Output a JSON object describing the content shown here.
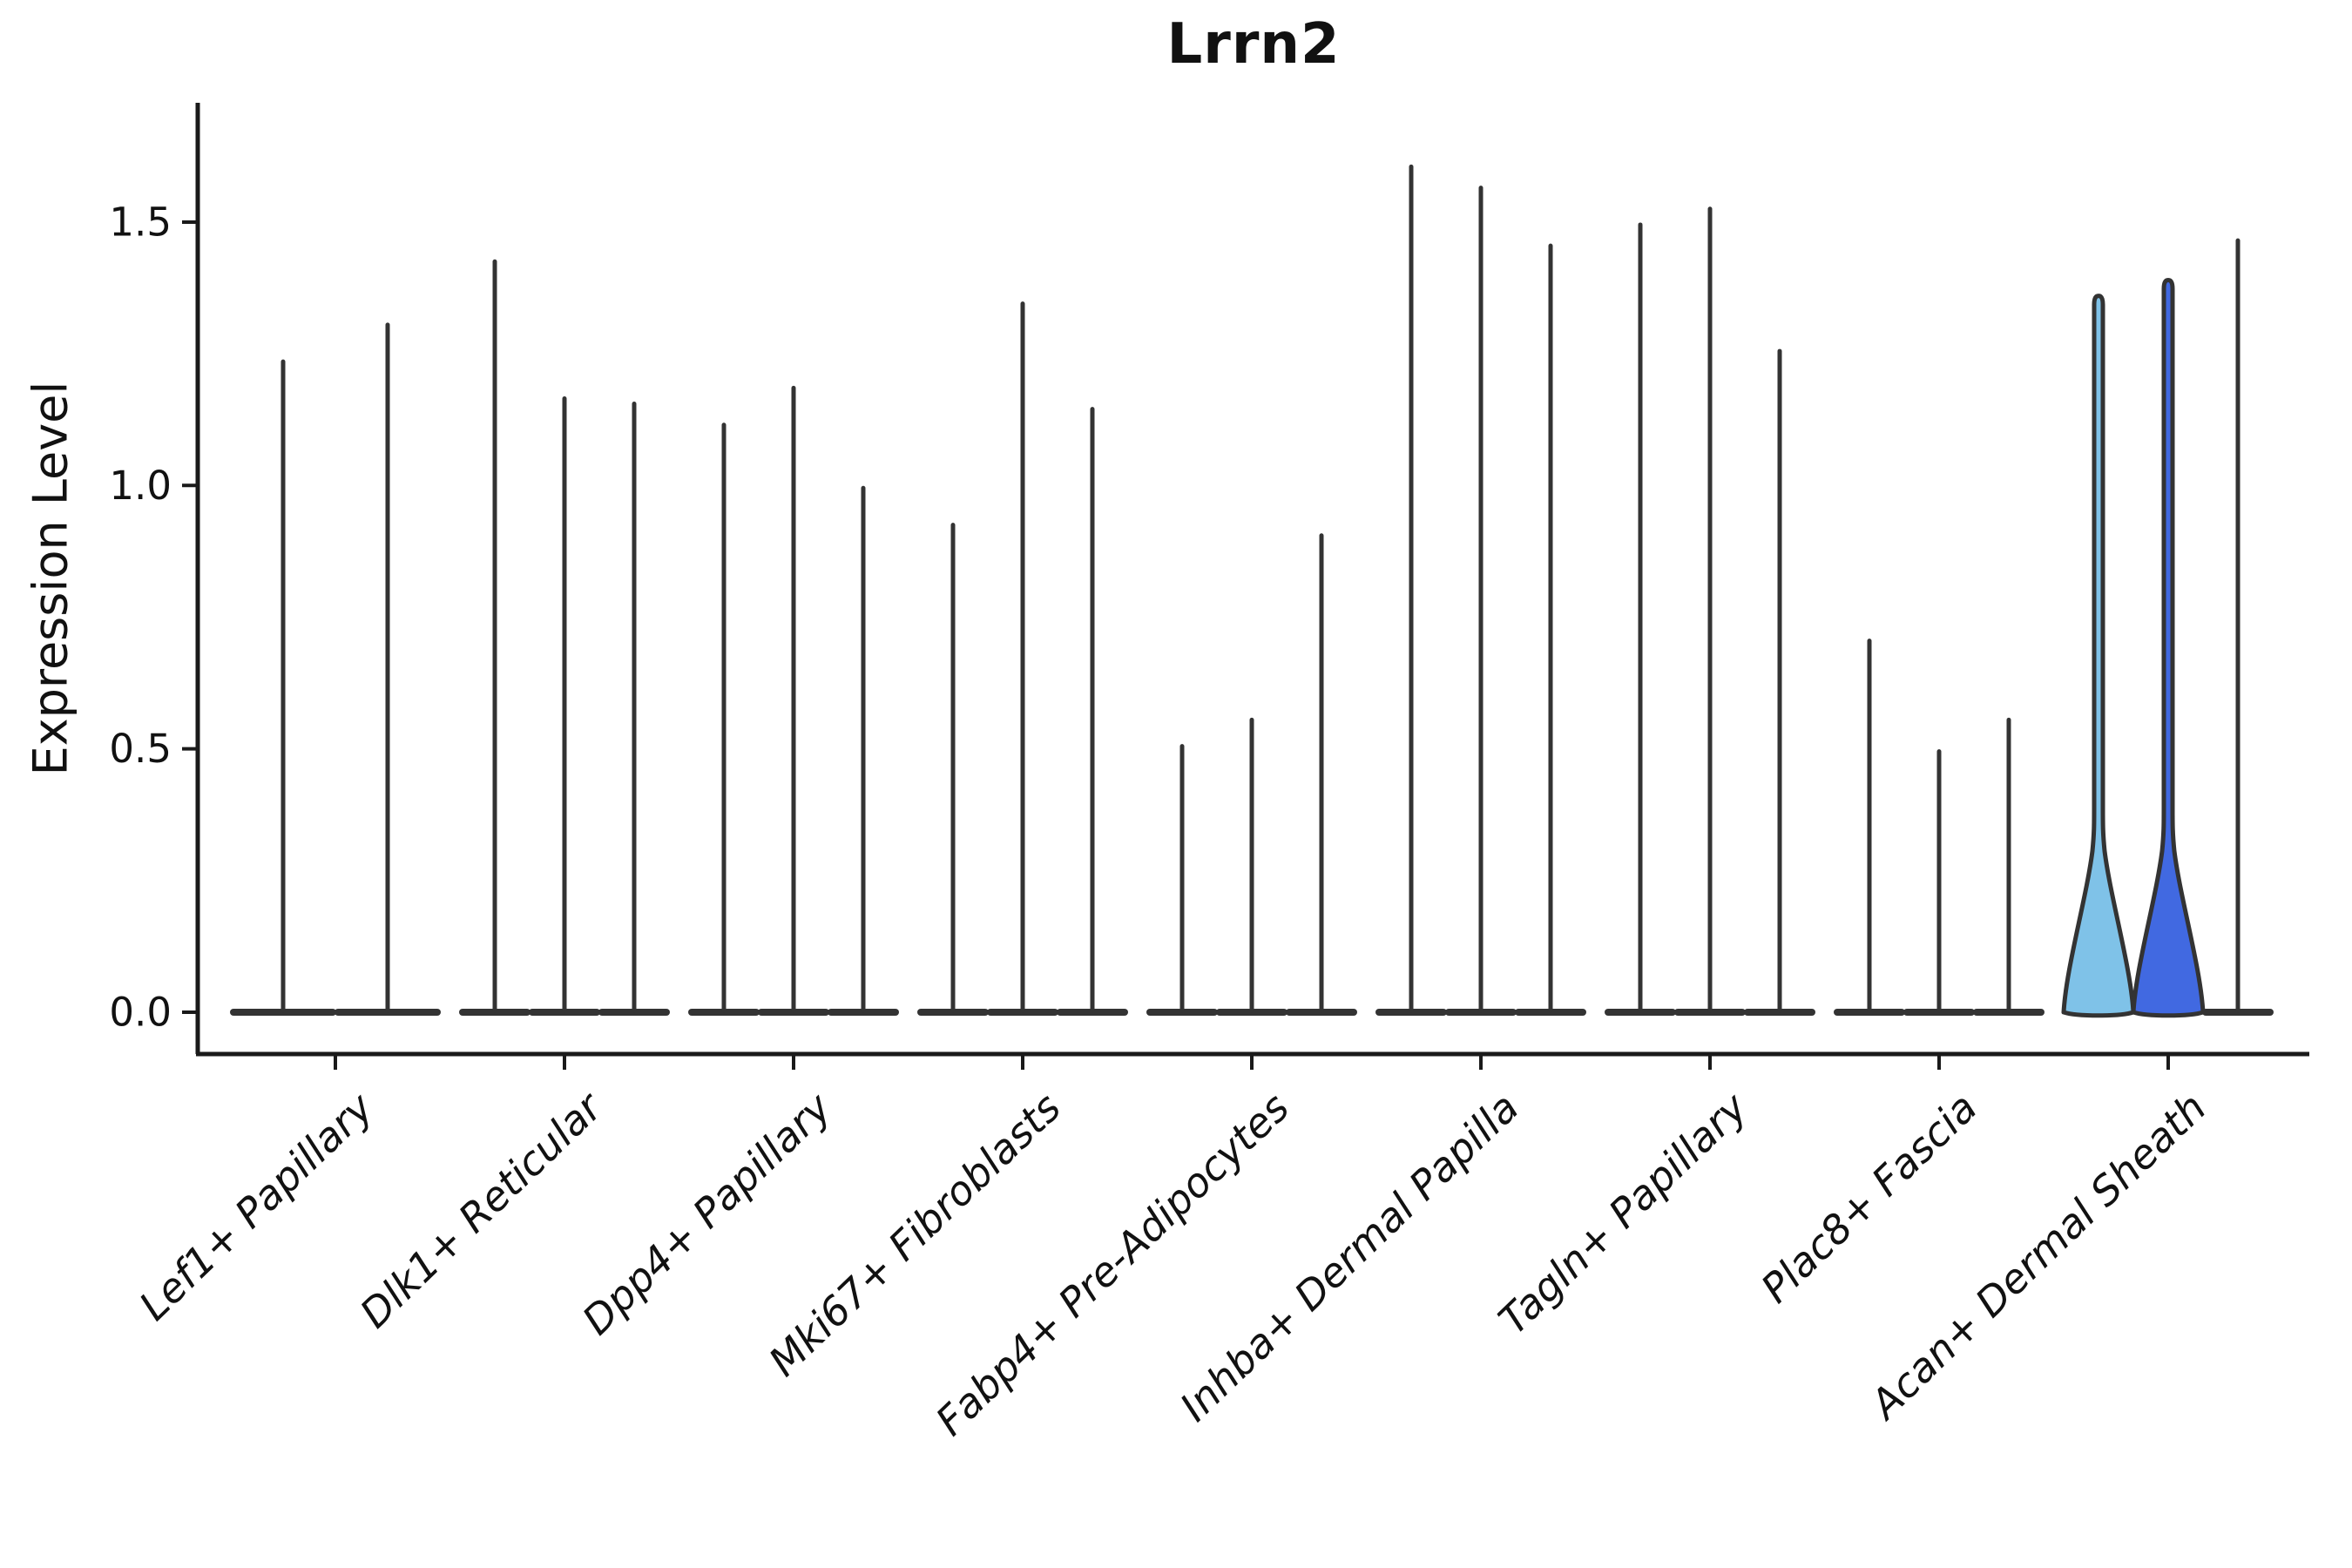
{
  "figure": {
    "title": "Lrrn2",
    "y_axis_label": "Expression Level"
  },
  "chart_data": {
    "type": "violin",
    "title": "Lrrn2",
    "xlabel": "",
    "ylabel": "Expression Level",
    "ylim": [
      -0.08,
      1.72
    ],
    "yticks": [
      "0.0",
      "0.5",
      "1.0",
      "1.5"
    ],
    "grid": false,
    "legend_position": "none",
    "categories": [
      "Lef1+ Papillary",
      "Dlk1+ Reticular",
      "Dpp4+ Papillary",
      "Mki67+ Fibroblasts",
      "Fabp4+ Pre-Adipocytes",
      "Inhba+ Dermal Papilla",
      "Tagln+ Papillary",
      "Plac8+ Fascia",
      "Acan+ Dermal Sheath"
    ],
    "groups": [
      {
        "category": "Lef1+ Papillary",
        "violins": [
          {
            "max": 1.24
          },
          {
            "max": 1.31
          }
        ]
      },
      {
        "category": "Dlk1+ Reticular",
        "violins": [
          {
            "max": 1.43
          },
          {
            "max": 1.17
          },
          {
            "max": 1.16
          }
        ]
      },
      {
        "category": "Dpp4+ Papillary",
        "violins": [
          {
            "max": 1.12
          },
          {
            "max": 1.19
          },
          {
            "max": 1.0
          }
        ]
      },
      {
        "category": "Mki67+ Fibroblasts",
        "violins": [
          {
            "max": 0.93
          },
          {
            "max": 1.35
          },
          {
            "max": 1.15
          }
        ]
      },
      {
        "category": "Fabp4+ Pre-Adipocytes",
        "violins": [
          {
            "max": 0.51
          },
          {
            "max": 0.56
          },
          {
            "max": 0.91
          }
        ]
      },
      {
        "category": "Inhba+ Dermal Papilla",
        "violins": [
          {
            "max": 1.61
          },
          {
            "max": 1.57
          },
          {
            "max": 1.46
          }
        ]
      },
      {
        "category": "Tagln+ Papillary",
        "violins": [
          {
            "max": 1.5
          },
          {
            "max": 1.53
          },
          {
            "max": 1.26
          }
        ]
      },
      {
        "category": "Plac8+ Fascia",
        "violins": [
          {
            "max": 0.71
          },
          {
            "max": 0.5
          },
          {
            "max": 0.56
          }
        ]
      },
      {
        "category": "Acan+ Dermal Sheath",
        "violins": [
          {
            "max": 1.36,
            "fill": "#7FC2E8",
            "body": true
          },
          {
            "max": 1.39,
            "fill": "#4169E1",
            "body": true
          },
          {
            "max": 1.47
          }
        ]
      }
    ],
    "colors": {
      "violin_outline": "#333333",
      "axis": "#1a1a1a",
      "text": "#111111",
      "highlight_light_blue": "#7FC2E8",
      "highlight_royal_blue": "#4169E1",
      "background": "#ffffff"
    }
  }
}
